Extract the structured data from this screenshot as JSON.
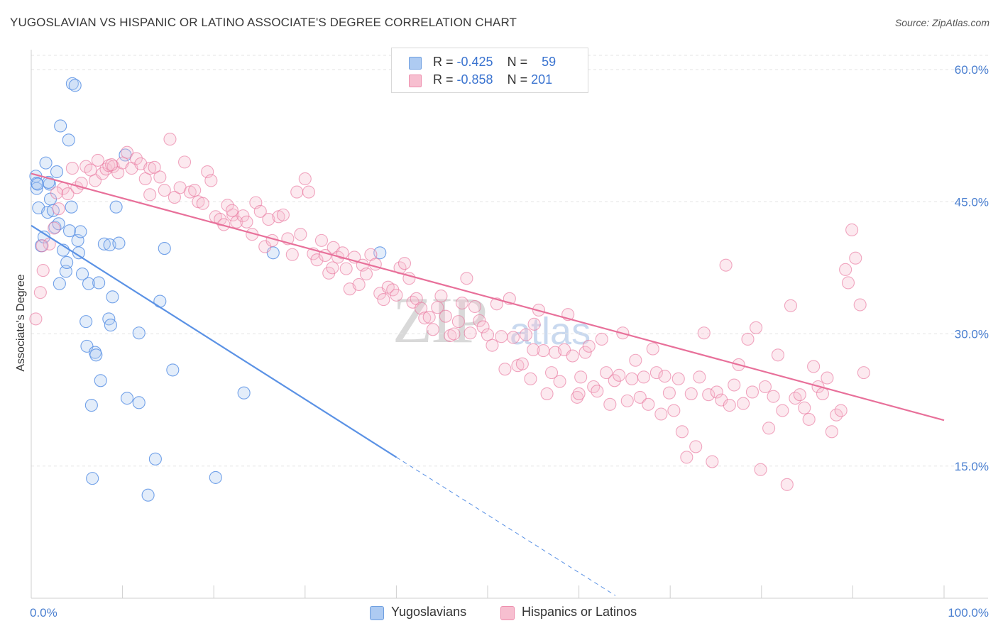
{
  "title": "YUGOSLAVIAN VS HISPANIC OR LATINO ASSOCIATE'S DEGREE CORRELATION CHART",
  "source": "Source: ZipAtlas.com",
  "watermark": {
    "zip": "ZIP",
    "atlas": "atlas"
  },
  "legend": {
    "rows": [
      {
        "r_label": "R = ",
        "r_value": "-0.425",
        "n_label": "N = ",
        "n_value": "59",
        "color": "#aecbf2",
        "border": "#6f9fe0"
      },
      {
        "r_label": "R = ",
        "r_value": "-0.858",
        "n_label": "N = ",
        "n_value": "201",
        "color": "#f7bfd0",
        "border": "#ee8fae"
      }
    ]
  },
  "bottom_legend": [
    {
      "label": "Yugoslavians",
      "color": "#aecbf2",
      "border": "#6f9fe0"
    },
    {
      "label": "Hispanics or Latinos",
      "color": "#f7bfd0",
      "border": "#ee8fae"
    }
  ],
  "chart_data": {
    "type": "scatter",
    "title": "YUGOSLAVIAN VS HISPANIC OR LATINO ASSOCIATE'S DEGREE CORRELATION CHART",
    "xlabel": "",
    "ylabel": "Associate's Degree",
    "xlim": [
      0,
      100
    ],
    "ylim": [
      0,
      60
    ],
    "x_tick_labels": [
      "0.0%",
      "100.0%"
    ],
    "y_ticks": [
      15,
      30,
      45,
      60
    ],
    "y_tick_labels": [
      "15.0%",
      "30.0%",
      "45.0%",
      "60.0%"
    ],
    "grid": true,
    "series": [
      {
        "name": "Yugoslavians",
        "color": "#5b92e5",
        "fill": "rgba(174,203,242,0.35)",
        "trend": {
          "x": [
            0,
            40
          ],
          "y": [
            42.3,
            16.0
          ],
          "dashed_to": [
            64,
            0.3
          ]
        },
        "points": [
          [
            0.5,
            47.9
          ],
          [
            0.6,
            47.1
          ],
          [
            0.6,
            46.5
          ],
          [
            0.8,
            44.3
          ],
          [
            1.1,
            40.0
          ],
          [
            1.4,
            41.0
          ],
          [
            1.6,
            49.4
          ],
          [
            1.8,
            43.8
          ],
          [
            2.0,
            47.0
          ],
          [
            2.1,
            45.3
          ],
          [
            2.4,
            44.0
          ],
          [
            2.6,
            42.1
          ],
          [
            2.8,
            48.4
          ],
          [
            3.1,
            35.7
          ],
          [
            3.2,
            53.6
          ],
          [
            3.5,
            39.5
          ],
          [
            3.8,
            37.1
          ],
          [
            3.9,
            38.1
          ],
          [
            4.1,
            52.0
          ],
          [
            4.2,
            41.7
          ],
          [
            4.4,
            44.4
          ],
          [
            4.5,
            58.4
          ],
          [
            4.8,
            58.2
          ],
          [
            5.1,
            40.6
          ],
          [
            5.2,
            39.2
          ],
          [
            5.4,
            41.6
          ],
          [
            5.6,
            36.8
          ],
          [
            6.0,
            31.4
          ],
          [
            6.1,
            28.6
          ],
          [
            6.3,
            35.7
          ],
          [
            6.6,
            21.9
          ],
          [
            6.7,
            13.6
          ],
          [
            7.0,
            27.9
          ],
          [
            7.1,
            27.6
          ],
          [
            7.4,
            35.8
          ],
          [
            7.6,
            24.7
          ],
          [
            8.0,
            40.2
          ],
          [
            8.5,
            31.7
          ],
          [
            8.6,
            40.1
          ],
          [
            8.7,
            31.0
          ],
          [
            8.9,
            34.2
          ],
          [
            9.3,
            44.4
          ],
          [
            9.6,
            40.3
          ],
          [
            10.3,
            50.3
          ],
          [
            10.5,
            22.7
          ],
          [
            11.8,
            22.2
          ],
          [
            11.8,
            30.1
          ],
          [
            12.8,
            11.7
          ],
          [
            13.6,
            15.8
          ],
          [
            14.1,
            33.7
          ],
          [
            14.6,
            39.7
          ],
          [
            15.5,
            25.9
          ],
          [
            20.2,
            13.7
          ],
          [
            23.3,
            23.3
          ],
          [
            26.5,
            39.2
          ],
          [
            38.2,
            39.2
          ],
          [
            0.7,
            47.0
          ],
          [
            1.9,
            47.2
          ],
          [
            3.0,
            42.5
          ]
        ]
      },
      {
        "name": "Hispanics or Latinos",
        "color": "#e8709a",
        "fill": "rgba(247,191,208,0.35)",
        "trend": {
          "x": [
            0,
            100
          ],
          "y": [
            48.2,
            20.2
          ]
        },
        "points": [
          [
            0.5,
            31.7
          ],
          [
            1.0,
            34.7
          ],
          [
            1.3,
            37.2
          ],
          [
            2.0,
            40.2
          ],
          [
            2.5,
            42.0
          ],
          [
            3.0,
            44.2
          ],
          [
            3.5,
            46.5
          ],
          [
            4.0,
            45.9
          ],
          [
            4.5,
            48.8
          ],
          [
            5.0,
            46.6
          ],
          [
            5.5,
            47.1
          ],
          [
            6.0,
            49.0
          ],
          [
            6.5,
            48.6
          ],
          [
            7.0,
            47.4
          ],
          [
            7.3,
            49.7
          ],
          [
            7.8,
            48.2
          ],
          [
            8.2,
            48.7
          ],
          [
            8.5,
            49.1
          ],
          [
            9.0,
            49.0
          ],
          [
            9.5,
            48.3
          ],
          [
            10.0,
            49.4
          ],
          [
            10.5,
            50.6
          ],
          [
            11.0,
            48.8
          ],
          [
            11.5,
            49.9
          ],
          [
            12.0,
            49.3
          ],
          [
            12.5,
            47.6
          ],
          [
            13.0,
            48.8
          ],
          [
            13.5,
            48.9
          ],
          [
            14.1,
            47.8
          ],
          [
            14.6,
            46.3
          ],
          [
            15.2,
            52.1
          ],
          [
            15.7,
            45.5
          ],
          [
            16.3,
            46.6
          ],
          [
            16.8,
            49.5
          ],
          [
            17.4,
            46.1
          ],
          [
            17.9,
            46.3
          ],
          [
            18.3,
            45.0
          ],
          [
            18.8,
            44.8
          ],
          [
            19.3,
            48.4
          ],
          [
            19.7,
            47.4
          ],
          [
            20.2,
            43.3
          ],
          [
            20.7,
            43.0
          ],
          [
            21.1,
            42.4
          ],
          [
            21.5,
            44.6
          ],
          [
            22.1,
            43.5
          ],
          [
            22.5,
            42.7
          ],
          [
            23.2,
            43.4
          ],
          [
            23.6,
            42.7
          ],
          [
            24.2,
            41.3
          ],
          [
            24.6,
            44.9
          ],
          [
            25.1,
            43.9
          ],
          [
            25.6,
            39.9
          ],
          [
            26.0,
            43.0
          ],
          [
            26.4,
            40.6
          ],
          [
            27.1,
            43.3
          ],
          [
            27.6,
            43.5
          ],
          [
            28.1,
            40.8
          ],
          [
            28.6,
            39.0
          ],
          [
            29.1,
            46.1
          ],
          [
            29.5,
            41.3
          ],
          [
            30.0,
            47.6
          ],
          [
            30.4,
            46.1
          ],
          [
            30.9,
            39.1
          ],
          [
            31.3,
            38.4
          ],
          [
            31.8,
            40.6
          ],
          [
            32.2,
            38.9
          ],
          [
            32.6,
            36.9
          ],
          [
            33.1,
            39.8
          ],
          [
            33.6,
            38.7
          ],
          [
            34.1,
            39.2
          ],
          [
            34.5,
            37.4
          ],
          [
            34.9,
            35.1
          ],
          [
            35.4,
            38.7
          ],
          [
            35.9,
            35.6
          ],
          [
            36.3,
            37.8
          ],
          [
            36.7,
            36.8
          ],
          [
            37.2,
            39.0
          ],
          [
            37.7,
            37.9
          ],
          [
            38.2,
            34.6
          ],
          [
            38.6,
            33.9
          ],
          [
            39.1,
            35.3
          ],
          [
            39.6,
            35.0
          ],
          [
            40.0,
            34.4
          ],
          [
            40.4,
            37.5
          ],
          [
            40.9,
            38.0
          ],
          [
            41.4,
            36.3
          ],
          [
            41.8,
            33.6
          ],
          [
            42.2,
            34.0
          ],
          [
            42.7,
            32.9
          ],
          [
            43.1,
            31.8
          ],
          [
            43.6,
            31.9
          ],
          [
            44.0,
            30.5
          ],
          [
            44.5,
            33.0
          ],
          [
            44.9,
            34.3
          ],
          [
            45.4,
            32.0
          ],
          [
            45.9,
            29.8
          ],
          [
            46.3,
            30.0
          ],
          [
            46.8,
            31.4
          ],
          [
            47.2,
            33.5
          ],
          [
            47.7,
            36.3
          ],
          [
            48.1,
            30.1
          ],
          [
            48.6,
            33.1
          ],
          [
            49.1,
            31.5
          ],
          [
            49.5,
            30.8
          ],
          [
            50.0,
            29.9
          ],
          [
            50.5,
            28.7
          ],
          [
            51.0,
            33.4
          ],
          [
            51.5,
            29.7
          ],
          [
            51.9,
            26.0
          ],
          [
            52.4,
            34.0
          ],
          [
            52.8,
            29.6
          ],
          [
            53.3,
            26.4
          ],
          [
            53.8,
            26.6
          ],
          [
            54.2,
            29.9
          ],
          [
            54.7,
            24.9
          ],
          [
            55.1,
            31.1
          ],
          [
            55.6,
            32.7
          ],
          [
            56.1,
            28.1
          ],
          [
            56.5,
            23.2
          ],
          [
            57.0,
            25.6
          ],
          [
            57.4,
            27.9
          ],
          [
            57.9,
            24.6
          ],
          [
            58.4,
            28.2
          ],
          [
            58.8,
            32.2
          ],
          [
            59.3,
            27.5
          ],
          [
            59.8,
            22.8
          ],
          [
            60.2,
            25.1
          ],
          [
            60.7,
            27.9
          ],
          [
            61.1,
            28.6
          ],
          [
            61.6,
            24.0
          ],
          [
            62.0,
            23.5
          ],
          [
            62.5,
            29.4
          ],
          [
            63.0,
            25.6
          ],
          [
            63.4,
            22.0
          ],
          [
            63.9,
            24.7
          ],
          [
            64.4,
            25.3
          ],
          [
            64.8,
            30.1
          ],
          [
            65.3,
            22.4
          ],
          [
            65.8,
            24.9
          ],
          [
            66.2,
            27.0
          ],
          [
            66.7,
            22.8
          ],
          [
            67.1,
            25.1
          ],
          [
            67.6,
            22.0
          ],
          [
            68.1,
            28.3
          ],
          [
            68.5,
            25.6
          ],
          [
            69.0,
            20.9
          ],
          [
            69.4,
            25.2
          ],
          [
            69.9,
            23.3
          ],
          [
            70.4,
            21.3
          ],
          [
            70.9,
            24.9
          ],
          [
            71.3,
            18.9
          ],
          [
            71.8,
            16.0
          ],
          [
            72.3,
            23.2
          ],
          [
            72.8,
            17.2
          ],
          [
            73.2,
            25.1
          ],
          [
            73.7,
            30.1
          ],
          [
            74.2,
            23.1
          ],
          [
            74.6,
            15.5
          ],
          [
            75.1,
            23.4
          ],
          [
            75.6,
            22.5
          ],
          [
            76.1,
            37.8
          ],
          [
            76.5,
            21.9
          ],
          [
            77.0,
            24.2
          ],
          [
            77.5,
            26.5
          ],
          [
            78.0,
            22.1
          ],
          [
            78.5,
            29.4
          ],
          [
            79.0,
            23.4
          ],
          [
            79.4,
            30.7
          ],
          [
            79.9,
            14.6
          ],
          [
            80.4,
            24.0
          ],
          [
            80.8,
            19.3
          ],
          [
            81.3,
            22.9
          ],
          [
            81.8,
            27.6
          ],
          [
            82.3,
            21.3
          ],
          [
            82.8,
            12.9
          ],
          [
            83.2,
            33.2
          ],
          [
            83.7,
            22.7
          ],
          [
            84.2,
            23.1
          ],
          [
            84.7,
            21.6
          ],
          [
            85.2,
            20.3
          ],
          [
            85.7,
            26.3
          ],
          [
            86.2,
            24.0
          ],
          [
            86.7,
            23.2
          ],
          [
            87.2,
            25.0
          ],
          [
            87.7,
            18.9
          ],
          [
            88.2,
            20.8
          ],
          [
            88.7,
            21.3
          ],
          [
            89.2,
            37.3
          ],
          [
            89.5,
            35.8
          ],
          [
            89.9,
            41.8
          ],
          [
            90.3,
            38.6
          ],
          [
            90.8,
            33.3
          ],
          [
            91.2,
            25.6
          ],
          [
            1.2,
            40.0
          ],
          [
            2.8,
            46.0
          ],
          [
            8.8,
            49.2
          ],
          [
            13.0,
            45.8
          ],
          [
            22.0,
            44.0
          ],
          [
            33.0,
            37.5
          ],
          [
            55.0,
            28.2
          ],
          [
            60.0,
            23.2
          ]
        ]
      }
    ]
  }
}
